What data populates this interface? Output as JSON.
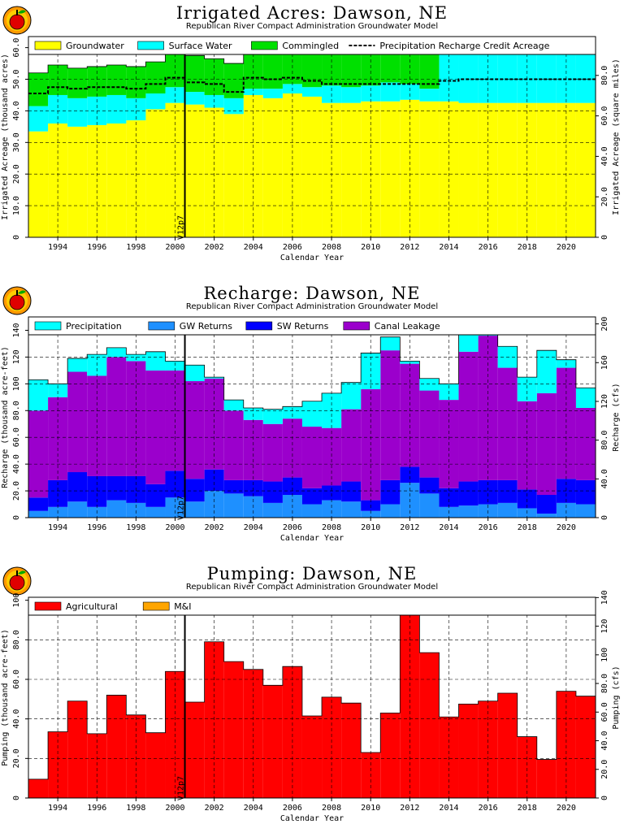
{
  "chart_data": [
    {
      "type": "area",
      "title": "Irrigated Acres: Dawson, NE",
      "subtitle": "Republican River Compact Administration Groundwater Model",
      "xlabel": "Calendar Year",
      "ylabel": "Irrigated Acreage (thousand acres)",
      "ylabel_right": "Irrigated Acreage (square miles)",
      "xlim": [
        1992.5,
        2021.5
      ],
      "ylim": [
        0,
        63.5
      ],
      "ylim_right": [
        0,
        99.2
      ],
      "x_ticks": [
        1994,
        1996,
        1998,
        2000,
        2002,
        2004,
        2006,
        2008,
        2010,
        2012,
        2014,
        2016,
        2018,
        2020
      ],
      "y_ticks": [
        0,
        10,
        20,
        30,
        40,
        50,
        60
      ],
      "y_tick_labels": [
        "0",
        "10.0",
        "20.0",
        "30.0",
        "40.0",
        "50.0",
        "60.0"
      ],
      "y_ticks_right": [
        0,
        20,
        40,
        60,
        80
      ],
      "y_tick_labels_right": [
        "0",
        "20.0",
        "40.0",
        "60.0",
        "80.0"
      ],
      "marker": {
        "x": 2000.5,
        "label": "V12p7"
      },
      "grid": true,
      "legend_position": "top",
      "legend": [
        {
          "label": "Groundwater",
          "color": "#ffff00",
          "kind": "box"
        },
        {
          "label": "Surface Water",
          "color": "#00ffff",
          "kind": "box"
        },
        {
          "label": "Commingled",
          "color": "#00e000",
          "kind": "box"
        },
        {
          "label": "Precipitation Recharge Credit Acreage",
          "color": "#000000",
          "kind": "dash"
        }
      ],
      "years": [
        1993,
        1994,
        1995,
        1996,
        1997,
        1998,
        1999,
        2000,
        2001,
        2002,
        2003,
        2004,
        2005,
        2006,
        2007,
        2008,
        2009,
        2010,
        2011,
        2012,
        2013,
        2014,
        2015,
        2016,
        2017,
        2018,
        2019,
        2020,
        2021
      ],
      "series": [
        {
          "name": "Groundwater",
          "color": "#ffff00",
          "values": [
            33.5,
            36,
            35,
            35.5,
            36,
            37,
            40.5,
            42.5,
            42,
            41,
            39,
            45,
            44,
            45.5,
            44.5,
            42.5,
            42.5,
            43,
            43,
            43.5,
            43,
            43,
            42.5,
            42.5,
            42.5,
            42.5,
            42.5,
            42.5,
            42.5
          ]
        },
        {
          "name": "Surface Water",
          "color": "#00ffff",
          "values": [
            8,
            9,
            9,
            9,
            9,
            7,
            5,
            5,
            4,
            4,
            5,
            2,
            3,
            3,
            3,
            5.5,
            5,
            5,
            6,
            5,
            4,
            16,
            17,
            17,
            17,
            17,
            17,
            17,
            17
          ]
        },
        {
          "name": "Commingled",
          "color": "#00e000",
          "values": [
            10.5,
            9.5,
            9.5,
            9.5,
            9.5,
            10,
            10,
            10.5,
            11.5,
            11.5,
            11,
            13,
            12.5,
            12.5,
            12.5,
            12,
            12.5,
            12,
            11,
            11.5,
            13,
            0,
            0,
            0,
            0,
            0,
            0,
            0,
            0
          ]
        }
      ],
      "precip_credit": [
        45.5,
        47.5,
        47,
        47.5,
        47.5,
        47,
        48.5,
        50.5,
        49,
        48.5,
        46,
        50.5,
        50,
        50.5,
        49.5,
        48.5,
        48.5,
        48.5,
        48.5,
        48.5,
        48.5,
        49.5,
        50,
        50,
        50,
        50,
        50,
        50,
        50
      ]
    },
    {
      "type": "area",
      "title": "Recharge: Dawson, NE",
      "subtitle": "Republican River Compact Administration Groundwater Model",
      "xlabel": "Calendar Year",
      "ylabel": "Recharge (thousand acre-feet)",
      "ylabel_right": "Recharge (cfs)",
      "xlim": [
        1992.5,
        2021.5
      ],
      "ylim": [
        0,
        150
      ],
      "ylim_right": [
        0,
        207.2
      ],
      "x_ticks": [
        1994,
        1996,
        1998,
        2000,
        2002,
        2004,
        2006,
        2008,
        2010,
        2012,
        2014,
        2016,
        2018,
        2020
      ],
      "y_ticks": [
        0,
        20,
        40,
        60,
        80,
        100,
        120,
        140
      ],
      "y_tick_labels": [
        "0",
        "20.0",
        "40.0",
        "60.0",
        "80.0",
        "100",
        "120",
        "140"
      ],
      "y_ticks_right": [
        0,
        40,
        80,
        120,
        160,
        200
      ],
      "y_tick_labels_right": [
        "0",
        "40.0",
        "80.0",
        "120",
        "160",
        "200"
      ],
      "marker": {
        "x": 2000.5,
        "label": "V12p7"
      },
      "grid": true,
      "legend_position": "top",
      "legend": [
        {
          "label": "Precipitation",
          "color": "#00ffff",
          "kind": "box"
        },
        {
          "label": "GW Returns",
          "color": "#1e90ff",
          "kind": "box"
        },
        {
          "label": "SW Returns",
          "color": "#0000ff",
          "kind": "box"
        },
        {
          "label": "Canal Leakage",
          "color": "#9b00cc",
          "kind": "box"
        }
      ],
      "years": [
        1993,
        1994,
        1995,
        1996,
        1997,
        1998,
        1999,
        2000,
        2001,
        2002,
        2003,
        2004,
        2005,
        2006,
        2007,
        2008,
        2009,
        2010,
        2011,
        2012,
        2013,
        2014,
        2015,
        2016,
        2017,
        2018,
        2019,
        2020,
        2021
      ],
      "series": [
        {
          "name": "GW Returns",
          "color": "#1e90ff",
          "values": [
            5,
            8,
            12,
            8,
            13,
            11,
            8,
            15,
            12,
            20,
            18,
            16,
            11,
            17,
            10,
            13,
            12,
            5,
            10,
            26,
            18,
            8,
            9,
            10,
            11,
            7,
            3,
            11,
            10
          ]
        },
        {
          "name": "SW Returns",
          "color": "#0000ff",
          "values": [
            10,
            20,
            22,
            23,
            18,
            20,
            17,
            20,
            17,
            16,
            10,
            12,
            16,
            13,
            12,
            11,
            15,
            8,
            18,
            12,
            12,
            14,
            18,
            18,
            17,
            14,
            14,
            18,
            18
          ]
        },
        {
          "name": "Canal Leakage",
          "color": "#9b00cc",
          "values": [
            65,
            62,
            75,
            75,
            89,
            86,
            85,
            75,
            73,
            68,
            52,
            45,
            43,
            44,
            46,
            43,
            54,
            83,
            97,
            77,
            65,
            66,
            97,
            108,
            84,
            66,
            76,
            83,
            54
          ]
        },
        {
          "name": "Precipitation",
          "color": "#00ffff",
          "values": [
            23,
            10,
            10,
            16,
            7,
            5,
            14,
            7,
            12,
            1,
            8,
            9,
            11,
            9,
            19,
            26,
            20,
            27,
            10,
            2,
            9,
            12,
            15,
            14,
            16,
            18,
            32,
            6,
            15
          ]
        }
      ]
    },
    {
      "type": "bar",
      "title": "Pumping: Dawson, NE",
      "subtitle": "Republican River Compact Administration Groundwater Model",
      "xlabel": "Calendar Year",
      "ylabel": "Pumping (thousand acre-feet)",
      "ylabel_right": "Pumping (cfs)",
      "xlim": [
        1992.5,
        2021.5
      ],
      "ylim": [
        0,
        101.5
      ],
      "ylim_right": [
        0,
        140.2
      ],
      "x_ticks": [
        1994,
        1996,
        1998,
        2000,
        2002,
        2004,
        2006,
        2008,
        2010,
        2012,
        2014,
        2016,
        2018,
        2020
      ],
      "y_ticks": [
        0,
        20,
        40,
        60,
        80,
        100
      ],
      "y_tick_labels": [
        "0",
        "20.0",
        "40.0",
        "60.0",
        "80.0",
        "100"
      ],
      "y_ticks_right": [
        0,
        20,
        40,
        60,
        80,
        100,
        120,
        140
      ],
      "y_tick_labels_right": [
        "0",
        "20.0",
        "40.0",
        "60.0",
        "80.0",
        "100",
        "120",
        "140"
      ],
      "marker": {
        "x": 2000.5,
        "label": "V12p7"
      },
      "grid": true,
      "legend_position": "top",
      "legend": [
        {
          "label": "Agricultural",
          "color": "#ff0000",
          "kind": "box"
        },
        {
          "label": "M&I",
          "color": "#ffa500",
          "kind": "box"
        }
      ],
      "years": [
        1993,
        1994,
        1995,
        1996,
        1997,
        1998,
        1999,
        2000,
        2001,
        2002,
        2003,
        2004,
        2005,
        2006,
        2007,
        2008,
        2009,
        2010,
        2011,
        2012,
        2013,
        2014,
        2015,
        2016,
        2017,
        2018,
        2019,
        2020,
        2021
      ],
      "series": [
        {
          "name": "Agricultural",
          "color": "#ff0000",
          "values": [
            9.5,
            33.5,
            49,
            32.5,
            52,
            42,
            33,
            64,
            48.5,
            79,
            69,
            65,
            57,
            66.5,
            41.5,
            51,
            48,
            23,
            43,
            101,
            73.5,
            41,
            47.5,
            49,
            53,
            31,
            19.5,
            54,
            51.5
          ]
        },
        {
          "name": "M&I",
          "color": "#ffa500",
          "values": [
            0,
            0,
            0,
            0,
            0,
            0,
            0,
            0,
            0,
            0,
            0,
            0,
            0,
            0,
            0,
            0,
            0,
            0,
            0,
            0,
            0,
            0,
            0,
            0,
            0,
            0,
            0,
            0,
            0
          ]
        }
      ]
    }
  ]
}
